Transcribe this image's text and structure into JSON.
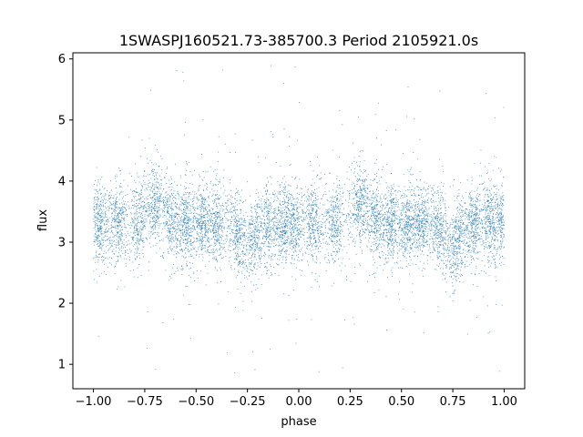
{
  "chart_data": {
    "type": "scatter",
    "title": "1SWASPJ160521.73-385700.3 Period 2105921.0s",
    "xlabel": "phase",
    "ylabel": "flux",
    "xlim": [
      -1.1,
      1.1
    ],
    "ylim": [
      0.6,
      6.1
    ],
    "xticks": [
      -1.0,
      -0.75,
      -0.5,
      -0.25,
      0.0,
      0.25,
      0.5,
      0.75,
      1.0
    ],
    "xtick_labels": [
      "−1.00",
      "−0.75",
      "−0.50",
      "−0.25",
      "0.00",
      "0.25",
      "0.50",
      "0.75",
      "1.00"
    ],
    "yticks": [
      1,
      2,
      3,
      4,
      5,
      6
    ],
    "ytick_labels": [
      "1",
      "2",
      "3",
      "4",
      "5",
      "6"
    ],
    "grid": false,
    "legend": "none",
    "point_color": "#1f77b4",
    "series": [
      {
        "x_range": [
          -1.0,
          1.0
        ],
        "folded_period_phase": 1.0,
        "typical_flux_center": 3.3,
        "typical_flux_spread": [
          2.6,
          4.2
        ],
        "outlier_flux_range": [
          0.85,
          5.9
        ],
        "clusters_phase": [
          -0.97,
          -0.88,
          -0.78,
          -0.7,
          -0.62,
          -0.55,
          -0.47,
          -0.4,
          -0.3,
          -0.22,
          -0.15,
          -0.08,
          -0.02,
          0.07,
          0.18,
          0.3,
          0.38,
          0.45,
          0.53,
          0.6,
          0.68,
          0.77,
          0.85,
          0.93,
          0.99
        ],
        "bright_phase": [
          -0.7,
          0.3
        ],
        "faint_phase": [
          -0.25,
          0.75
        ]
      }
    ]
  }
}
